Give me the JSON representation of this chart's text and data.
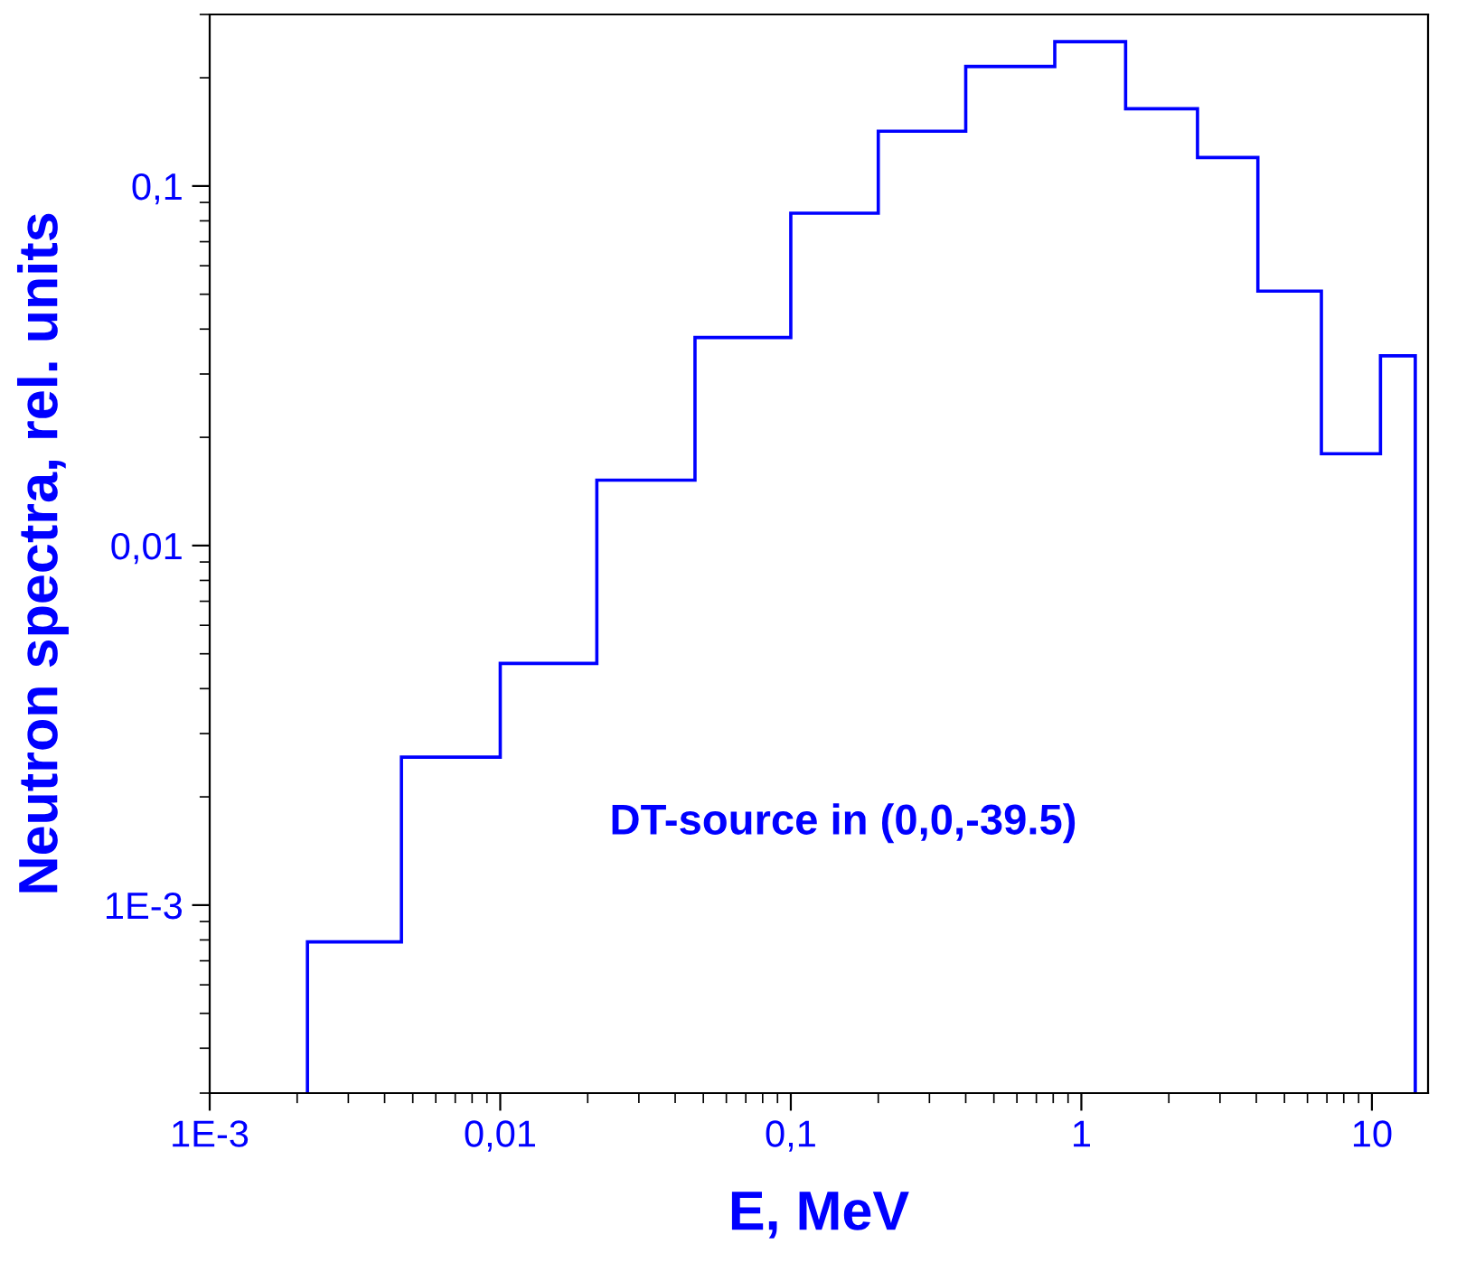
{
  "chart_data": {
    "type": "histogram",
    "xlabel": "E, MeV",
    "ylabel": "Neutron spectra, rel. units",
    "annotations": [
      "DT-source in (0,0,-39.5)"
    ],
    "bins": [
      0.00217,
      0.00457,
      0.01,
      0.0215,
      0.0468,
      0.1,
      0.2,
      0.4,
      0.81,
      1.42,
      2.51,
      4.05,
      6.7,
      10.7,
      14.1
    ],
    "values": [
      0.00079,
      0.00258,
      0.0047,
      0.0152,
      0.0379,
      0.084,
      0.142,
      0.215,
      0.252,
      0.164,
      0.12,
      0.051,
      0.018,
      0.0337
    ],
    "color": "#0000ff",
    "log": "xy",
    "grid": false,
    "xlim": [
      0.001,
      15.6
    ],
    "ylim": [
      0.0003,
      0.3
    ],
    "xticks": [
      {
        "value": 0.001,
        "label": "1E-3"
      },
      {
        "value": 0.01,
        "label": "0,01"
      },
      {
        "value": 0.1,
        "label": "0,1"
      },
      1,
      10
    ],
    "yticks": [
      {
        "value": 0.001,
        "label": "1E-3"
      },
      {
        "value": 0.01,
        "label": "0,01"
      },
      {
        "value": 0.1,
        "label": "0,1"
      }
    ]
  }
}
